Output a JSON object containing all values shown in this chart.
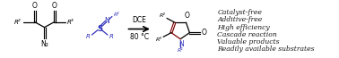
{
  "background_color": "#ffffff",
  "arrow_color": "#000000",
  "arrow_label_top": "DCE",
  "arrow_label_bottom": "80 °C",
  "bullet_points": [
    "Catalyst-free",
    "Additive-free",
    "High efficiency",
    "Cascade reaction",
    "Valuable products",
    "Readily available substrates"
  ],
  "blue_color": "#3333bb",
  "dark_red_color": "#7B0000",
  "bond_color": "#000000",
  "text_color": "#1a1a1a",
  "bullet_fontsize": 5.5,
  "arrow_fontsize": 5.5,
  "figsize": [
    3.78,
    0.65
  ],
  "dpi": 100
}
